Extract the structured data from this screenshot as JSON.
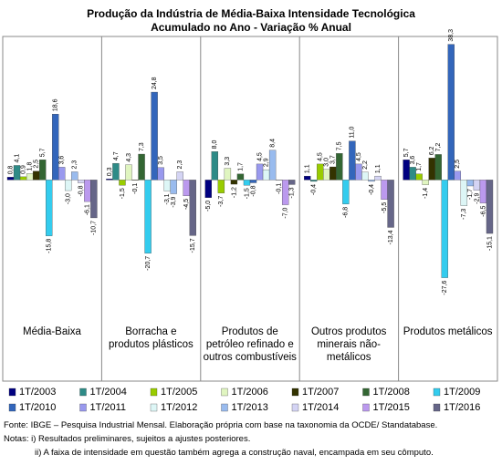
{
  "chart_data": {
    "type": "bar",
    "title": "Produção da Indústria de Média-Baixa Intensidade Tecnológica",
    "subtitle": "Acumulado no Ano - Variação % Anual",
    "categories": [
      "Média-Baixa",
      "Borracha e produtos plásticos",
      "Produtos de petróleo refinado e outros combustíveis",
      "Outros produtos minerais não-metálicos",
      "Produtos metálicos"
    ],
    "ylim": [
      -38,
      40
    ],
    "series": [
      {
        "name": "1T/2003",
        "color": "#000080",
        "values": [
          0.8,
          0.3,
          -5.0,
          1.1,
          5.7
        ],
        "value_labels": [
          "0,8",
          "0,3",
          "-5,0",
          "1,1",
          "5,7"
        ]
      },
      {
        "name": "1T/2004",
        "color": "#2e8b87",
        "values": [
          4.1,
          4.7,
          8.0,
          -0.4,
          3.6
        ],
        "value_labels": [
          "4,1",
          "4,7",
          "8,0",
          "-0,4",
          "3,6"
        ]
      },
      {
        "name": "1T/2005",
        "color": "#99cc00",
        "values": [
          0.9,
          -1.5,
          -3.7,
          4.5,
          1.7
        ],
        "value_labels": [
          "0,9",
          "-1,5",
          "-3,7",
          "4,5",
          "1,7"
        ]
      },
      {
        "name": "1T/2006",
        "color": "#e0f5c0",
        "values": [
          1.8,
          4.3,
          3.3,
          3.0,
          -1.4
        ],
        "value_labels": [
          "1,8",
          "4,3",
          "3,3",
          "3,0",
          "-1,4"
        ]
      },
      {
        "name": "1T/2007",
        "color": "#333300",
        "values": [
          2.5,
          -0.1,
          -1.2,
          3.7,
          6.2
        ],
        "value_labels": [
          "2,5",
          "-0,1",
          "-1,2",
          "3,7",
          "6,2"
        ]
      },
      {
        "name": "1T/2008",
        "color": "#336633",
        "values": [
          5.7,
          7.3,
          1.7,
          7.5,
          7.2
        ],
        "value_labels": [
          "5,7",
          "7,3",
          "1,7",
          "7,5",
          "7,2"
        ]
      },
      {
        "name": "1T/2009",
        "color": "#33ccee",
        "values": [
          -15.8,
          -20.7,
          -1.5,
          -6.8,
          -27.6
        ],
        "value_labels": [
          "-15,8",
          "-20,7",
          "-1,5",
          "-6,8",
          "-27,6"
        ]
      },
      {
        "name": "1T/2010",
        "color": "#3366bb",
        "values": [
          18.6,
          24.8,
          -0.8,
          11.0,
          38.3
        ],
        "value_labels": [
          "18,6",
          "24,8",
          "-0,8",
          "11,0",
          "38,3"
        ]
      },
      {
        "name": "1T/2011",
        "color": "#9999ee",
        "values": [
          3.6,
          3.5,
          4.5,
          4.5,
          2.5
        ],
        "value_labels": [
          "3,6",
          "3,5",
          "4,5",
          "4,5",
          "2,5"
        ]
      },
      {
        "name": "1T/2012",
        "color": "#ddf6f6",
        "values": [
          -3.0,
          -3.1,
          2.9,
          2.2,
          -7.3
        ],
        "value_labels": [
          "-3,0",
          "-3,1",
          "2,9",
          "2,2",
          "-7,3"
        ]
      },
      {
        "name": "1T/2013",
        "color": "#99bbee",
        "values": [
          2.3,
          -3.9,
          8.4,
          -0.4,
          -1.7
        ],
        "value_labels": [
          "2,3",
          "-3,9",
          "8,4",
          "-0,4",
          "-1,7"
        ]
      },
      {
        "name": "1T/2014",
        "color": "#d4d4f4",
        "values": [
          -0.8,
          2.3,
          -0.1,
          1.1,
          -2.9
        ],
        "value_labels": [
          "-0,8",
          "2,3",
          "-0,1",
          "1,1",
          "-2,9"
        ]
      },
      {
        "name": "1T/2015",
        "color": "#bb99ee",
        "values": [
          -6.1,
          -4.5,
          -7.0,
          -5.5,
          -6.5
        ],
        "value_labels": [
          "-6,1",
          "-4,5",
          "-7,0",
          "-5,5",
          "-6,5"
        ]
      },
      {
        "name": "1T/2016",
        "color": "#666688",
        "values": [
          -10.7,
          -15.7,
          -1.3,
          -13.4,
          -15.1
        ],
        "value_labels": [
          "-10,7",
          "-15,7",
          "-1,3",
          "-13,4",
          "-15,1"
        ]
      }
    ],
    "notes": [
      "Fonte: IBGE – Pesquisa Industrial Mensal. Elaboração própria com base na taxonomia da OCDE/ Standatabase.",
      "Notas: i) Resultados preliminares, sujeitos a ajustes posteriores.",
      "ii) A faixa de intensidade em questão também agrega a construção naval, encampada em seu cômputo."
    ]
  }
}
